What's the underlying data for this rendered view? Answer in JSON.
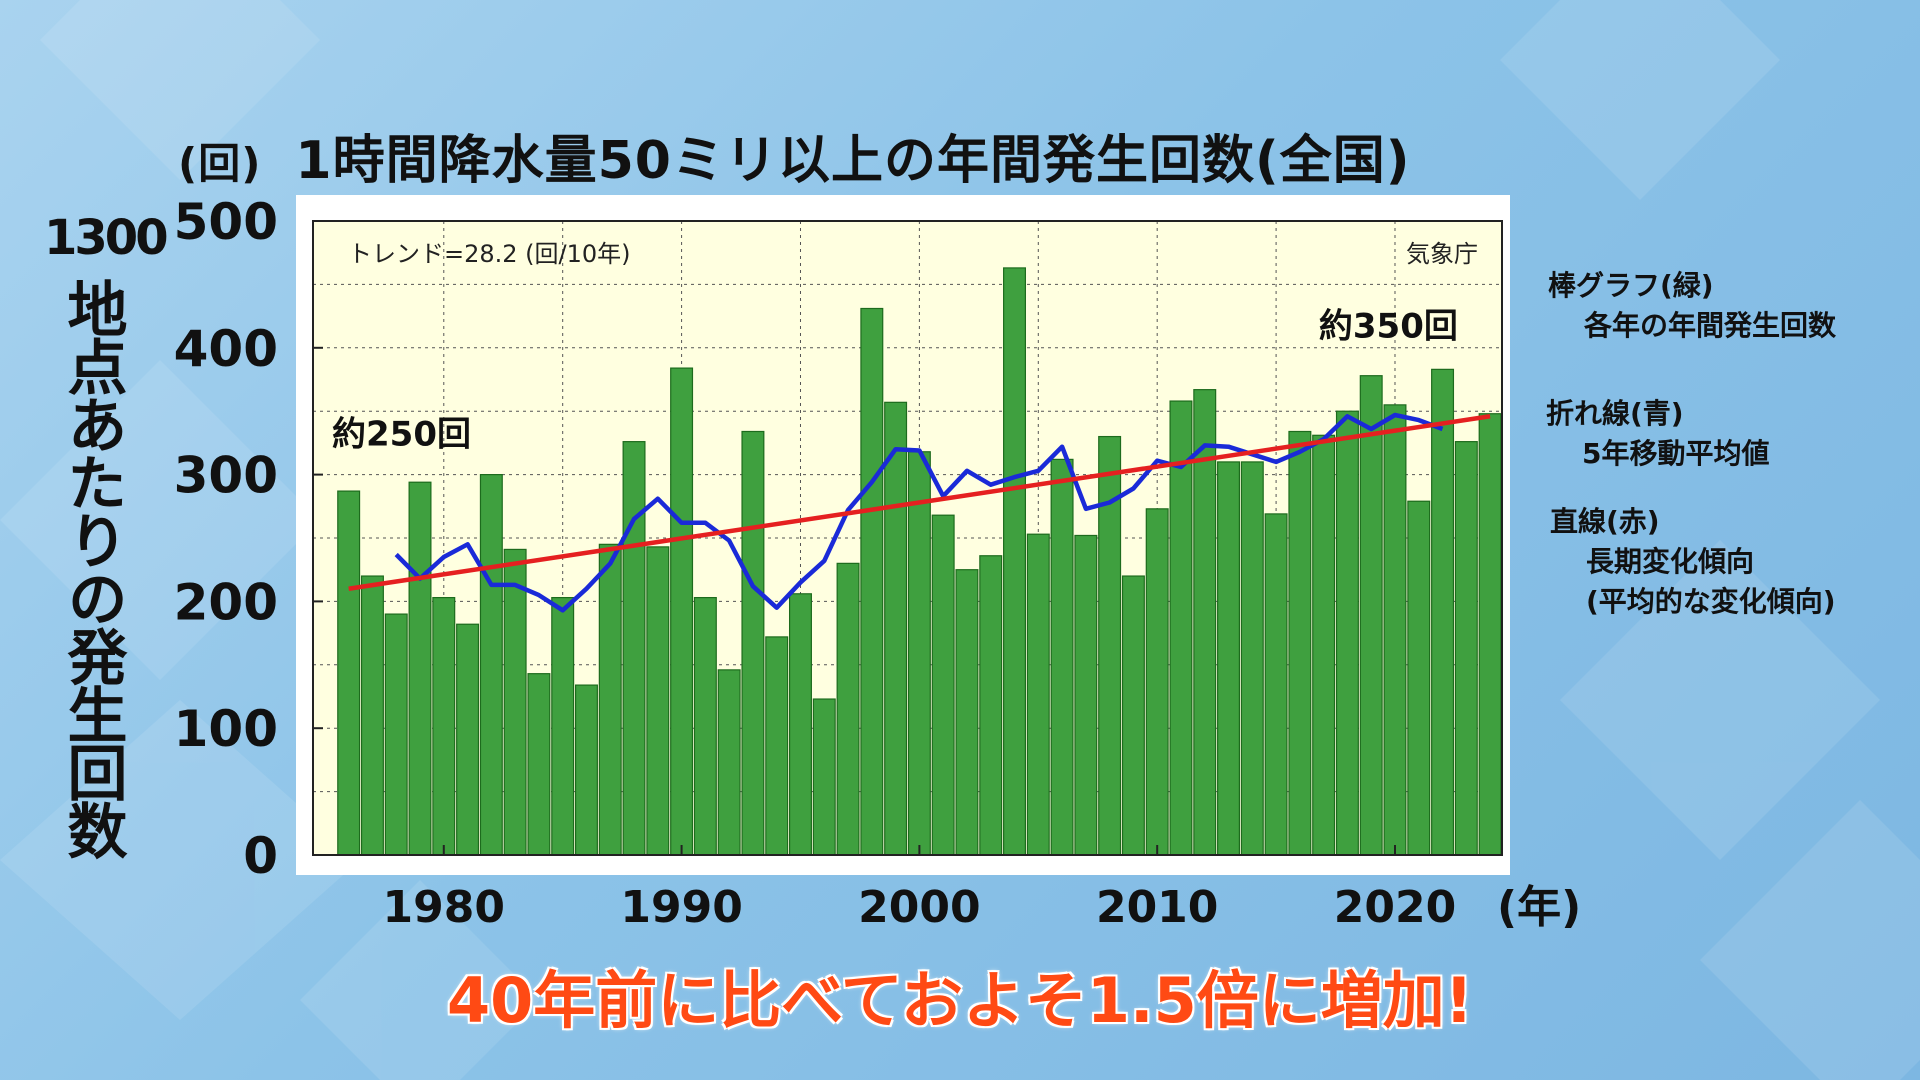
{
  "chart_data": {
    "type": "bar",
    "title": "1時間降水量50ミリ以上の年間発生回数(全国)",
    "y_unit": "(回)",
    "x_unit": "(年)",
    "ylabel_count": "1300",
    "ylabel": "地点あたりの発生回数",
    "ylim": [
      0,
      500
    ],
    "yticks": [
      0,
      100,
      200,
      300,
      400,
      500
    ],
    "xticks": [
      1980,
      1990,
      2000,
      2010,
      2020
    ],
    "xlim": [
      1975,
      2024
    ],
    "grid": true,
    "trend_label": "トレンド=28.2 (回/10年)",
    "source": "気象庁",
    "colors": {
      "bars": "#3fa03f",
      "moving_avg": "#1a2ad8",
      "trend": "#e52020",
      "plot_bg": "#ffffe0"
    },
    "series": [
      {
        "name": "棒グラフ(緑)",
        "kind": "bar",
        "x": [
          1976,
          1977,
          1978,
          1979,
          1980,
          1981,
          1982,
          1983,
          1984,
          1985,
          1986,
          1987,
          1988,
          1989,
          1990,
          1991,
          1992,
          1993,
          1994,
          1995,
          1996,
          1997,
          1998,
          1999,
          2000,
          2001,
          2002,
          2003,
          2004,
          2005,
          2006,
          2007,
          2008,
          2009,
          2010,
          2011,
          2012,
          2013,
          2014,
          2015,
          2016,
          2017,
          2018,
          2019,
          2020,
          2021,
          2022,
          2023,
          2024
        ],
        "values": [
          287,
          220,
          190,
          294,
          203,
          182,
          300,
          241,
          143,
          203,
          134,
          245,
          326,
          243,
          384,
          203,
          146,
          334,
          172,
          206,
          123,
          230,
          431,
          357,
          318,
          268,
          225,
          236,
          463,
          253,
          312,
          252,
          330,
          220,
          273,
          358,
          367,
          310,
          310,
          269,
          334,
          331,
          350,
          378,
          355,
          279,
          383,
          326,
          348
        ]
      },
      {
        "name": "折れ線(青)",
        "kind": "line",
        "x": [
          1978,
          1979,
          1980,
          1981,
          1982,
          1983,
          1984,
          1985,
          1986,
          1987,
          1988,
          1989,
          1990,
          1991,
          1992,
          1993,
          1994,
          1995,
          1996,
          1997,
          1998,
          1999,
          2000,
          2001,
          2002,
          2003,
          2004,
          2005,
          2006,
          2007,
          2008,
          2009,
          2010,
          2011,
          2012,
          2013,
          2014,
          2015,
          2016,
          2017,
          2018,
          2019,
          2020,
          2021,
          2022
        ],
        "values": [
          237,
          218,
          235,
          245,
          213,
          213,
          205,
          193,
          210,
          230,
          265,
          281,
          262,
          262,
          248,
          212,
          195,
          215,
          232,
          272,
          294,
          320,
          319,
          283,
          303,
          292,
          298,
          303,
          322,
          273,
          278,
          289,
          311,
          306,
          323,
          322,
          316,
          310,
          318,
          328,
          346,
          336,
          347,
          343,
          336
        ]
      },
      {
        "name": "直線(赤)",
        "kind": "trend",
        "x": [
          1976,
          2024
        ],
        "values": [
          210,
          346
        ]
      }
    ],
    "annotations": [
      {
        "text": "約250回",
        "x": 1975.8,
        "y": 323
      },
      {
        "text": "約350回",
        "x": 2017.3,
        "y": 408
      }
    ]
  },
  "legend": [
    {
      "title": "棒グラフ(緑)",
      "lines": [
        "各年の年間発生回数"
      ]
    },
    {
      "title": "折れ線(青)",
      "lines": [
        "5年移動平均値"
      ]
    },
    {
      "title": "直線(赤)",
      "lines": [
        "長期変化傾向",
        "(平均的な変化傾向)"
      ]
    }
  ],
  "conclusion": "40年前に比べておよそ1.5倍に増加!"
}
